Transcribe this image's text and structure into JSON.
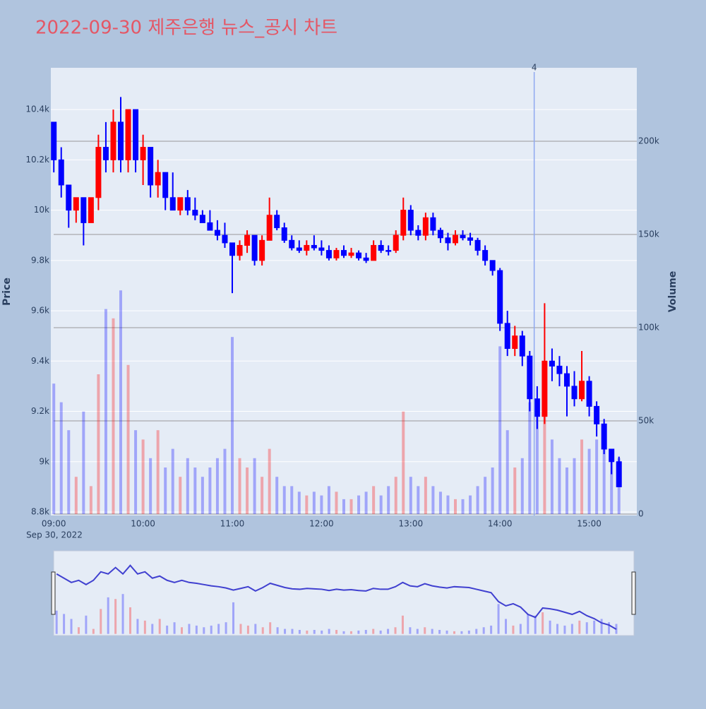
{
  "chart_data": {
    "type": "candlestick",
    "title": "2022-09-30 제주은행 뉴스_공시 차트",
    "x": [
      "09:00",
      "09:05",
      "09:10",
      "09:15",
      "09:20",
      "09:25",
      "09:30",
      "09:35",
      "09:40",
      "09:45",
      "09:50",
      "09:55",
      "10:00",
      "10:05",
      "10:10",
      "10:15",
      "10:20",
      "10:25",
      "10:30",
      "10:35",
      "10:40",
      "10:45",
      "10:50",
      "10:55",
      "11:00",
      "11:05",
      "11:10",
      "11:15",
      "11:20",
      "11:25",
      "11:30",
      "11:35",
      "11:40",
      "11:45",
      "11:50",
      "11:55",
      "12:00",
      "12:05",
      "12:10",
      "12:15",
      "12:20",
      "12:25",
      "12:30",
      "12:35",
      "12:40",
      "12:45",
      "12:50",
      "12:55",
      "13:00",
      "13:05",
      "13:10",
      "13:15",
      "13:20",
      "13:25",
      "13:30",
      "13:35",
      "13:40",
      "13:45",
      "13:50",
      "13:55",
      "14:00",
      "14:05",
      "14:10",
      "14:15",
      "14:20",
      "14:25",
      "14:30",
      "14:35",
      "14:40",
      "14:45",
      "14:50",
      "14:55",
      "15:00",
      "15:05",
      "15:10",
      "15:15",
      "15:20"
    ],
    "open": [
      10350,
      10200,
      10100,
      10000,
      10050,
      9950,
      10050,
      10250,
      10200,
      10350,
      10200,
      10400,
      10200,
      10250,
      10100,
      10150,
      10050,
      10000,
      10050,
      10000,
      9980,
      9950,
      9920,
      9900,
      9870,
      9820,
      9860,
      9900,
      9800,
      9880,
      9980,
      9930,
      9880,
      9850,
      9840,
      9860,
      9850,
      9840,
      9810,
      9840,
      9820,
      9830,
      9810,
      9800,
      9860,
      9840,
      9840,
      9900,
      10000,
      9920,
      9900,
      9970,
      9920,
      9890,
      9870,
      9900,
      9890,
      9880,
      9840,
      9800,
      9760,
      9550,
      9450,
      9500,
      9420,
      9250,
      9180,
      9400,
      9380,
      9350,
      9300,
      9250,
      9320,
      9220,
      9150,
      9050,
      9000
    ],
    "high": [
      10350,
      10250,
      10100,
      10050,
      10050,
      10050,
      10300,
      10350,
      10400,
      10450,
      10400,
      10400,
      10300,
      10250,
      10200,
      10150,
      10150,
      10050,
      10080,
      10050,
      10000,
      10000,
      9960,
      9950,
      9870,
      9880,
      9920,
      9900,
      9900,
      10050,
      10000,
      9950,
      9900,
      9880,
      9880,
      9900,
      9880,
      9860,
      9850,
      9860,
      9850,
      9840,
      9830,
      9880,
      9880,
      9860,
      9920,
      10050,
      10020,
      9940,
      9990,
      9990,
      9930,
      9910,
      9920,
      9920,
      9910,
      9890,
      9860,
      9800,
      9770,
      9600,
      9540,
      9520,
      9440,
      9300,
      9630,
      9450,
      9420,
      9380,
      9360,
      9440,
      9340,
      9240,
      9170,
      9050,
      9020
    ],
    "low": [
      10150,
      10050,
      9930,
      9950,
      9860,
      9950,
      10000,
      10150,
      10150,
      10150,
      10150,
      10150,
      10100,
      10050,
      10050,
      10000,
      10000,
      9980,
      9980,
      9960,
      9950,
      9920,
      9880,
      9850,
      9670,
      9800,
      9830,
      9780,
      9780,
      9880,
      9920,
      9870,
      9840,
      9830,
      9820,
      9840,
      9820,
      9800,
      9800,
      9810,
      9810,
      9800,
      9790,
      9800,
      9830,
      9820,
      9830,
      9880,
      9900,
      9880,
      9880,
      9900,
      9870,
      9840,
      9860,
      9880,
      9860,
      9820,
      9780,
      9740,
      9520,
      9420,
      9420,
      9380,
      9200,
      9130,
      9150,
      9320,
      9300,
      9180,
      9220,
      9240,
      9180,
      9100,
      9030,
      8950,
      8900
    ],
    "close": [
      10200,
      10100,
      10000,
      10050,
      9950,
      10050,
      10250,
      10200,
      10350,
      10200,
      10400,
      10200,
      10250,
      10100,
      10150,
      10050,
      10000,
      10050,
      10000,
      9980,
      9950,
      9920,
      9900,
      9870,
      9820,
      9860,
      9900,
      9800,
      9880,
      9980,
      9930,
      9880,
      9850,
      9840,
      9860,
      9850,
      9840,
      9810,
      9840,
      9820,
      9830,
      9810,
      9800,
      9860,
      9840,
      9840,
      9900,
      10000,
      9920,
      9900,
      9970,
      9920,
      9890,
      9870,
      9900,
      9890,
      9880,
      9840,
      9800,
      9760,
      9550,
      9450,
      9500,
      9420,
      9250,
      9180,
      9400,
      9380,
      9350,
      9300,
      9250,
      9320,
      9220,
      9150,
      9050,
      9000,
      8900
    ],
    "volume": [
      70000,
      60000,
      45000,
      20000,
      55000,
      15000,
      75000,
      110000,
      105000,
      120000,
      80000,
      45000,
      40000,
      30000,
      45000,
      25000,
      35000,
      20000,
      30000,
      25000,
      20000,
      25000,
      30000,
      35000,
      95000,
      30000,
      25000,
      30000,
      20000,
      35000,
      20000,
      15000,
      15000,
      12000,
      10000,
      12000,
      10000,
      15000,
      12000,
      8000,
      8000,
      10000,
      12000,
      15000,
      10000,
      15000,
      20000,
      55000,
      20000,
      15000,
      20000,
      15000,
      12000,
      10000,
      8000,
      8000,
      10000,
      15000,
      20000,
      25000,
      90000,
      45000,
      25000,
      30000,
      60000,
      55000,
      65000,
      40000,
      30000,
      25000,
      30000,
      40000,
      35000,
      40000,
      45000,
      35000,
      30000
    ],
    "increasing_color": "#ff0000",
    "decreasing_color": "#0000ff",
    "xlim": [
      "08:58",
      "15:32"
    ],
    "xticks": [
      "09:00",
      "10:00",
      "11:00",
      "12:00",
      "13:00",
      "14:00",
      "15:00"
    ],
    "x_date_label": "Sep 30, 2022",
    "ylim": [
      8786,
      10566
    ],
    "yticks": [
      {
        "value": 8800,
        "label": "8.8k"
      },
      {
        "value": 9000,
        "label": "9k"
      },
      {
        "value": 9200,
        "label": "9.2k"
      },
      {
        "value": 9400,
        "label": "9.4k"
      },
      {
        "value": 9600,
        "label": "9.6k"
      },
      {
        "value": 9800,
        "label": "9.8k"
      },
      {
        "value": 10000,
        "label": "10k"
      },
      {
        "value": 10200,
        "label": "10.2k"
      },
      {
        "value": 10400,
        "label": "10.4k"
      }
    ],
    "y2lim": [
      -760,
      239400
    ],
    "y2ticks": [
      0,
      {
        "value": 50000,
        "label": "50k"
      },
      {
        "value": 100000,
        "label": "100k"
      },
      {
        "value": 150000,
        "label": "150k"
      },
      {
        "value": 200000,
        "label": "200k"
      }
    ],
    "ylabel": "Price",
    "y2label": "Volume",
    "annotations": [
      {
        "x": "14:23",
        "text": "4"
      }
    ],
    "grid": true,
    "rangeslider": true
  }
}
